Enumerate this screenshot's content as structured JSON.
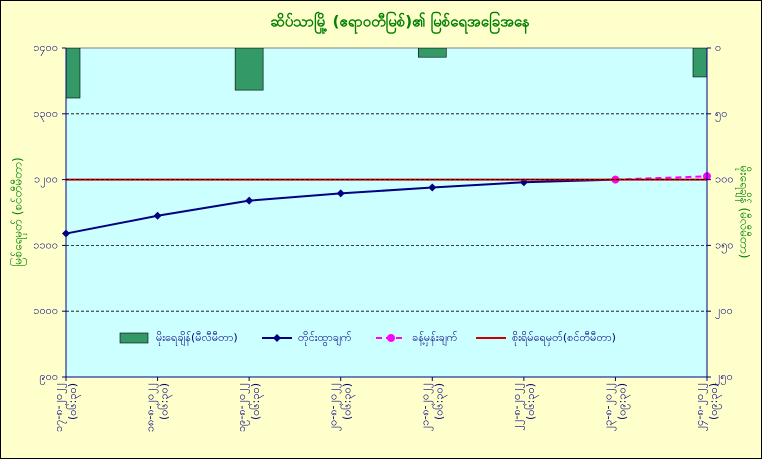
{
  "chart_data": {
    "type": "combo",
    "title": "ဆိပ်သာမြို့ (ဧရာဝတီမြစ်)၏ မြစ်ရေအခြေအနေ",
    "y_label": "မြစ်ရေမှတ် (စင်တီမီတာ)",
    "y2_label": "မိုးရေချိန် (မီလီမီတာ)",
    "categories": [
      "၁၇-၈-၂၀၂၂",
      "၁၈-၈-၂၀၂၂",
      "၁၉-၈-၂၀၂၂",
      "၂၀-၈-၂၀၂၂",
      "၂၁-၈-၂၀၂၂",
      "၂၂-၈-၂၀၂၂",
      "၂၃-၈-၂၀၂၂",
      "၂၄-၈-၂၀၂၂"
    ],
    "category_times": [
      "(၀၆:၃၀)",
      "(၀၆:၃၀)",
      "(၀၆:၃၀)",
      "(၀၆:၃၀)",
      "(၀၆:၃၀)",
      "(၀၆:၃၀)",
      "(၀၉:၃၀)",
      "(၀၉:၃၀)"
    ],
    "series": [
      {
        "name": "မိုးရေချိန်(မီလီမီတာ)",
        "kind": "bar",
        "axis": "y2",
        "color": "#339966",
        "values": [
          38,
          0,
          32,
          0,
          7,
          0,
          0,
          22
        ]
      },
      {
        "name": "တိုင်းထွာချက်",
        "kind": "line",
        "color": "#000080",
        "marker": "diamond",
        "values": [
          1118,
          1145,
          1168,
          1179,
          1188,
          1196,
          1200,
          null
        ]
      },
      {
        "name": "ခန့်မှန်းချက်",
        "kind": "line",
        "color": "#ff00ff",
        "dashed": true,
        "marker": "circle",
        "values": [
          null,
          null,
          null,
          null,
          null,
          null,
          1200,
          1205
        ]
      },
      {
        "name": "စိုးရိမ်ရေမှတ်(စင်တီမီတာ)",
        "kind": "line",
        "color": "#cc0000",
        "values": [
          1200,
          1200,
          1200,
          1200,
          1200,
          1200,
          1200,
          1200
        ]
      }
    ],
    "ylim": [
      900,
      1400
    ],
    "yticks": [
      {
        "value": 900,
        "label": "၉၀၀"
      },
      {
        "value": 1000,
        "label": "၁၀၀၀"
      },
      {
        "value": 1100,
        "label": "၁၁၀၀"
      },
      {
        "value": 1200,
        "label": "၁၂၀၀"
      },
      {
        "value": 1300,
        "label": "၁၃၀၀"
      },
      {
        "value": 1400,
        "label": "၁၄၀၀"
      }
    ],
    "y2lim": [
      250,
      0
    ],
    "y2ticks": [
      {
        "value": 0,
        "label": "၀"
      },
      {
        "value": 50,
        "label": "၅၀"
      },
      {
        "value": 100,
        "label": "၁၀၀"
      },
      {
        "value": 150,
        "label": "၁၅၀"
      },
      {
        "value": 200,
        "label": "၂၀၀"
      },
      {
        "value": 250,
        "label": "၂၅၀"
      }
    ],
    "grid": true
  }
}
